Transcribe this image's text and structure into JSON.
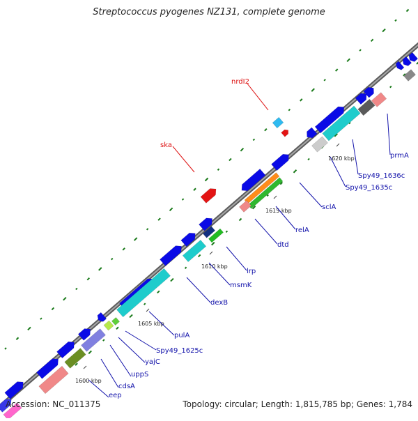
{
  "title": "Streptococcus pyogenes NZ131, complete genome",
  "footer": {
    "accession": "Accession: NC_011375",
    "summary": "Topology: circular; Length: 1,815,785 bp; Genes: 1,784"
  },
  "colors": {
    "backbone": "#808080",
    "cds_blue": "#0a0ae6",
    "cyan": "#1ecccc",
    "salmon": "#f08888",
    "olive": "#6b8e23",
    "purple": "#8080e0",
    "red": "#e31414",
    "gc_dots": "#1a7a1a",
    "label_blue": "#1111aa",
    "label_red": "#dd1111"
  },
  "ticks": [
    "1600 kbp",
    "1605 kbp",
    "1610 kbp",
    "1615 kbp",
    "1620 kbp"
  ],
  "genes": [
    {
      "name": "eep",
      "color": "label_blue"
    },
    {
      "name": "cdsA",
      "color": "label_blue"
    },
    {
      "name": "uppS",
      "color": "label_blue"
    },
    {
      "name": "yajC",
      "color": "label_blue"
    },
    {
      "name": "Spy49_1625c",
      "color": "label_blue"
    },
    {
      "name": "pulA",
      "color": "label_blue"
    },
    {
      "name": "dexB",
      "color": "label_blue"
    },
    {
      "name": "msmK",
      "color": "label_blue"
    },
    {
      "name": "lrp",
      "color": "label_blue"
    },
    {
      "name": "dtd",
      "color": "label_blue"
    },
    {
      "name": "relA",
      "color": "label_blue"
    },
    {
      "name": "sclA",
      "color": "label_blue"
    },
    {
      "name": "Spy49_1635c",
      "color": "label_blue"
    },
    {
      "name": "Spy49_1636c",
      "color": "label_blue"
    },
    {
      "name": "prmA",
      "color": "label_blue"
    },
    {
      "name": "ska",
      "color": "label_red"
    },
    {
      "name": "nrdI2",
      "color": "label_red"
    }
  ]
}
